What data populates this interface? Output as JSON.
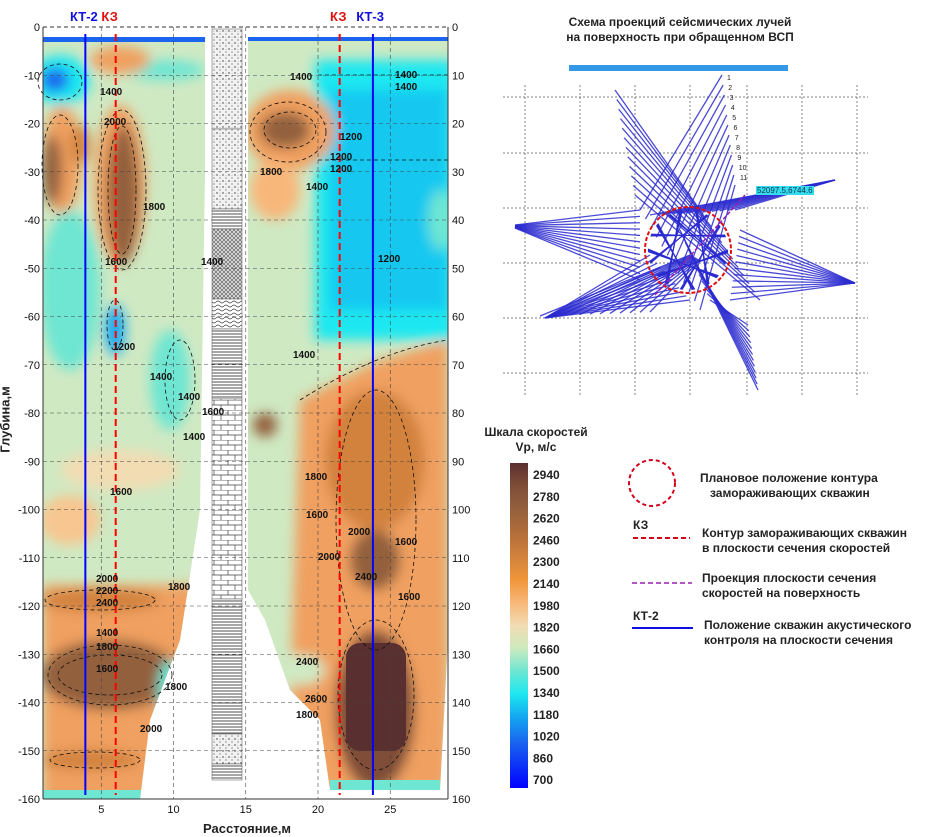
{
  "chart_data": {
    "type": "heatmap",
    "subtype": "velocity contour section",
    "xlabel": "Расстояние,м",
    "ylabel": "Глубина,м",
    "xlim": [
      1,
      29
    ],
    "ylim": [
      -160,
      0
    ],
    "x_ticks": [
      "5",
      "10",
      "15",
      "20",
      "25"
    ],
    "y_ticks": [
      "0",
      "-10",
      "-20",
      "-30",
      "-40",
      "-50",
      "-60",
      "-70",
      "-80",
      "-90",
      "-100",
      "-110",
      "-120",
      "-130",
      "-140",
      "-150",
      "-160"
    ],
    "y_ticks_right": [
      "0",
      "10",
      "20",
      "30",
      "40",
      "50",
      "60",
      "70",
      "80",
      "90",
      "100",
      "110",
      "120",
      "130",
      "140",
      "150",
      "160"
    ],
    "grid": true,
    "wells": [
      {
        "label": "КТ-2",
        "x": 3.9,
        "color": "#0000ff",
        "style": "solid"
      },
      {
        "label": "КЗ",
        "x": 6.0,
        "color": "#ff0000",
        "style": "dashed"
      },
      {
        "label": "КЗ",
        "x": 21.5,
        "color": "#ff0000",
        "style": "dashed"
      },
      {
        "label": "КТ-3",
        "x": 23.8,
        "color": "#0000ff",
        "style": "solid"
      }
    ],
    "contour_labels": [
      "1400",
      "1400",
      "1400",
      "1400",
      "1200",
      "2000",
      "1200",
      "1200",
      "1800",
      "1400",
      "1800",
      "1600",
      "1400",
      "1200",
      "1200",
      "1400",
      "1400",
      "1400",
      "1600",
      "1400",
      "1600",
      "1800",
      "1600",
      "2000",
      "2000",
      "1600",
      "2400",
      "1600",
      "1800",
      "2000",
      "2200",
      "2400",
      "1400",
      "1800",
      "1600",
      "1800",
      "2000",
      "2400",
      "2600",
      "1800"
    ],
    "colorbar": {
      "title": "Шкала скоростей",
      "unit": "Vp, м/с",
      "ticks": [
        "2940",
        "2780",
        "2620",
        "2460",
        "2300",
        "2140",
        "1980",
        "1820",
        "1660",
        "1500",
        "1340",
        "1180",
        "1020",
        "860",
        "700"
      ],
      "range": [
        700,
        2940
      ],
      "colors": [
        "#5a2f2f",
        "#6e3c36",
        "#7f4d38",
        "#93603c",
        "#b06c3a",
        "#d2823c",
        "#f0963a",
        "#f8b77a",
        "#f2dcb2",
        "#cdeabf",
        "#6ee6d2",
        "#1ee8f0",
        "#13a8f0",
        "#1a64f0",
        "#0000ff"
      ]
    }
  },
  "header": {
    "left_labels": [
      "КТ-2",
      "КЗ"
    ],
    "right_labels": [
      "КЗ",
      "КТ-3"
    ]
  },
  "scheme": {
    "title_line1": "Схема проекций сейсмических лучей",
    "title_line2": "на поверхность при обращенном ВСП",
    "coordinate_label": "52097.5,6744.6",
    "ray_numbers": [
      "1",
      "2",
      "3",
      "4",
      "5",
      "6",
      "7",
      "8",
      "9",
      "10",
      "11"
    ]
  },
  "legend": {
    "circle_text_1": "Плановое положение контура",
    "circle_text_2": "замораживающих скважин",
    "kz_label": "КЗ",
    "kz_text_1": "Контур замораживающих скважин",
    "kz_text_2": "в плоскости сечения скоростей",
    "proj_text_1": "Проекция плоскости сечения",
    "proj_text_2": "скоростей  на поверхность",
    "kt_label": "КТ-2",
    "kt_text_1": "Положение скважин акустического",
    "kt_text_2": "контроля на плоскости сечения"
  },
  "colors": {
    "well_blue": "#0000ff",
    "kz_red": "#ff0000",
    "projection_purple": "#9b1fb0",
    "ray_blue": "#2b2bd0",
    "surface_bar": "#3399e6"
  }
}
